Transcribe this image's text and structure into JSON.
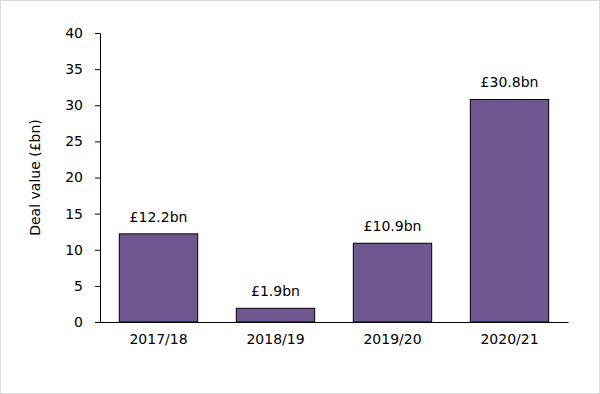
{
  "chart_data": {
    "type": "bar",
    "y_label": "Deal value (£bn)",
    "categories": [
      "2017/18",
      "2018/19",
      "2019/20",
      "2020/21"
    ],
    "values": [
      12.2,
      1.9,
      10.9,
      30.8
    ],
    "value_labels": [
      "£12.2bn",
      "£1.9bn",
      "£10.9bn",
      "£30.8bn"
    ],
    "data_labels": true,
    "color": "#6f5890",
    "ylim": [
      0,
      40
    ],
    "yticks": [
      0,
      5,
      10,
      15,
      20,
      25,
      30,
      35,
      40
    ],
    "grid": false
  }
}
